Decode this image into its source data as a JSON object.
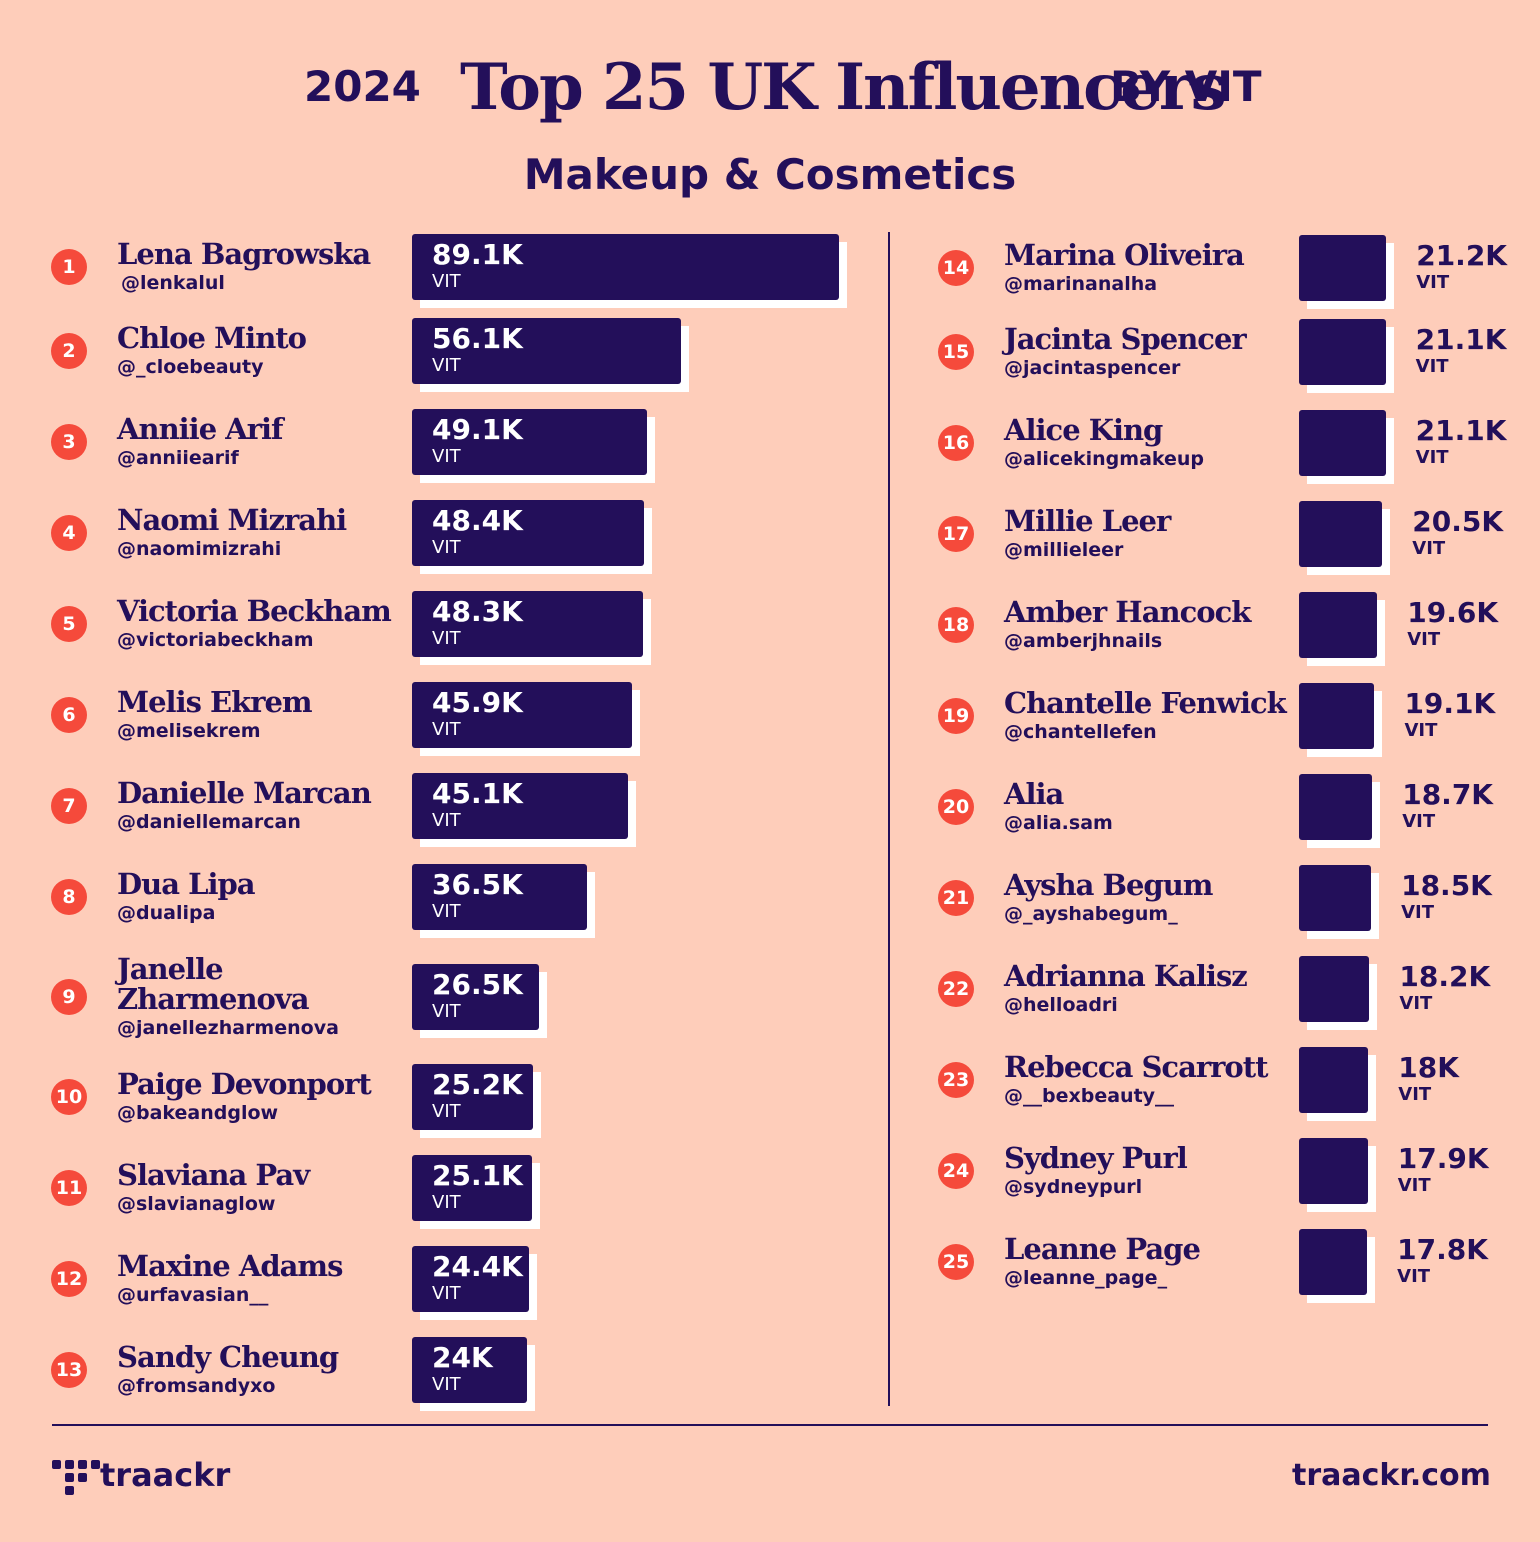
{
  "header": {
    "year": "2024",
    "title": "Top 25 UK Influencers",
    "by": "BY VIT",
    "subtitle": "Makeup & Cosmetics"
  },
  "colors": {
    "background": "#FECDBA",
    "bar": "#230F5A",
    "badge": "#F54A3B",
    "text": "#230F5A"
  },
  "chart_data": {
    "type": "bar",
    "orientation": "horizontal",
    "title": "Top 25 UK Influencers",
    "subtitle": "Makeup & Cosmetics",
    "value_unit": "VIT",
    "entries": [
      {
        "rank": "1",
        "name": "Lena Bagrowska",
        "handle": "@lenkalul",
        "label": "89.1K",
        "value": 89100
      },
      {
        "rank": "2",
        "name": "Chloe Minto",
        "handle": "@_cloebeauty",
        "label": "56.1K",
        "value": 56100
      },
      {
        "rank": "3",
        "name": "Anniie Arif",
        "handle": "@anniiearif",
        "label": "49.1K",
        "value": 49100
      },
      {
        "rank": "4",
        "name": "Naomi Mizrahi",
        "handle": "@naomimizrahi",
        "label": "48.4K",
        "value": 48400
      },
      {
        "rank": "5",
        "name": "Victoria Beckham",
        "handle": "@victoriabeckham",
        "label": "48.3K",
        "value": 48300
      },
      {
        "rank": "6",
        "name": "Melis Ekrem",
        "handle": "@melisekrem",
        "label": "45.9K",
        "value": 45900
      },
      {
        "rank": "7",
        "name": "Danielle Marcan",
        "handle": "@daniellemarcan",
        "label": "45.1K",
        "value": 45100
      },
      {
        "rank": "8",
        "name": "Dua Lipa",
        "handle": "@dualipa",
        "label": "36.5K",
        "value": 36500
      },
      {
        "rank": "9",
        "name": "Janelle Zharmenova",
        "handle": "@janellezharmenova",
        "label": "26.5K",
        "value": 26500
      },
      {
        "rank": "10",
        "name": "Paige Devonport",
        "handle": "@bakeandglow",
        "label": "25.2K",
        "value": 25200
      },
      {
        "rank": "11",
        "name": "Slaviana Pav",
        "handle": "@slavianaglow",
        "label": "25.1K",
        "value": 25100
      },
      {
        "rank": "12",
        "name": "Maxine Adams",
        "handle": "@urfavasian__",
        "label": "24.4K",
        "value": 24400
      },
      {
        "rank": "13",
        "name": "Sandy Cheung",
        "handle": "@fromsandyxo",
        "label": "24K",
        "value": 24000
      },
      {
        "rank": "14",
        "name": "Marina Oliveira",
        "handle": "@marinanalha",
        "label": "21.2K",
        "value": 21200
      },
      {
        "rank": "15",
        "name": "Jacinta Spencer",
        "handle": "@jacintaspencer",
        "label": "21.1K",
        "value": 21100
      },
      {
        "rank": "16",
        "name": "Alice King",
        "handle": "@alicekingmakeup",
        "label": "21.1K",
        "value": 21100
      },
      {
        "rank": "17",
        "name": "Millie Leer",
        "handle": "@millieleer",
        "label": "20.5K",
        "value": 20500
      },
      {
        "rank": "18",
        "name": "Amber Hancock",
        "handle": "@amberjhnails",
        "label": "19.6K",
        "value": 19600
      },
      {
        "rank": "19",
        "name": "Chantelle Fenwick",
        "handle": "@chantellefen",
        "label": "19.1K",
        "value": 19100
      },
      {
        "rank": "20",
        "name": "Alia",
        "handle": "@alia.sam",
        "label": "18.7K",
        "value": 18700
      },
      {
        "rank": "21",
        "name": "Aysha Begum",
        "handle": "@_ayshabegum_",
        "label": "18.5K",
        "value": 18500
      },
      {
        "rank": "22",
        "name": "Adrianna Kalisz",
        "handle": "@helloadri",
        "label": "18.2K",
        "value": 18200
      },
      {
        "rank": "23",
        "name": "Rebecca Scarrott",
        "handle": "@__bexbeauty__",
        "label": "18K",
        "value": 18000
      },
      {
        "rank": "24",
        "name": "Sydney Purl",
        "handle": "@sydneypurl",
        "label": "17.9K",
        "value": 17900
      },
      {
        "rank": "25",
        "name": "Leanne Page",
        "handle": "@leanne_page_",
        "label": "17.8K",
        "value": 17800
      }
    ]
  },
  "footer": {
    "logo_text": "traackr",
    "logo_icon": "traackr-dots-icon",
    "website": "traackr.com"
  }
}
